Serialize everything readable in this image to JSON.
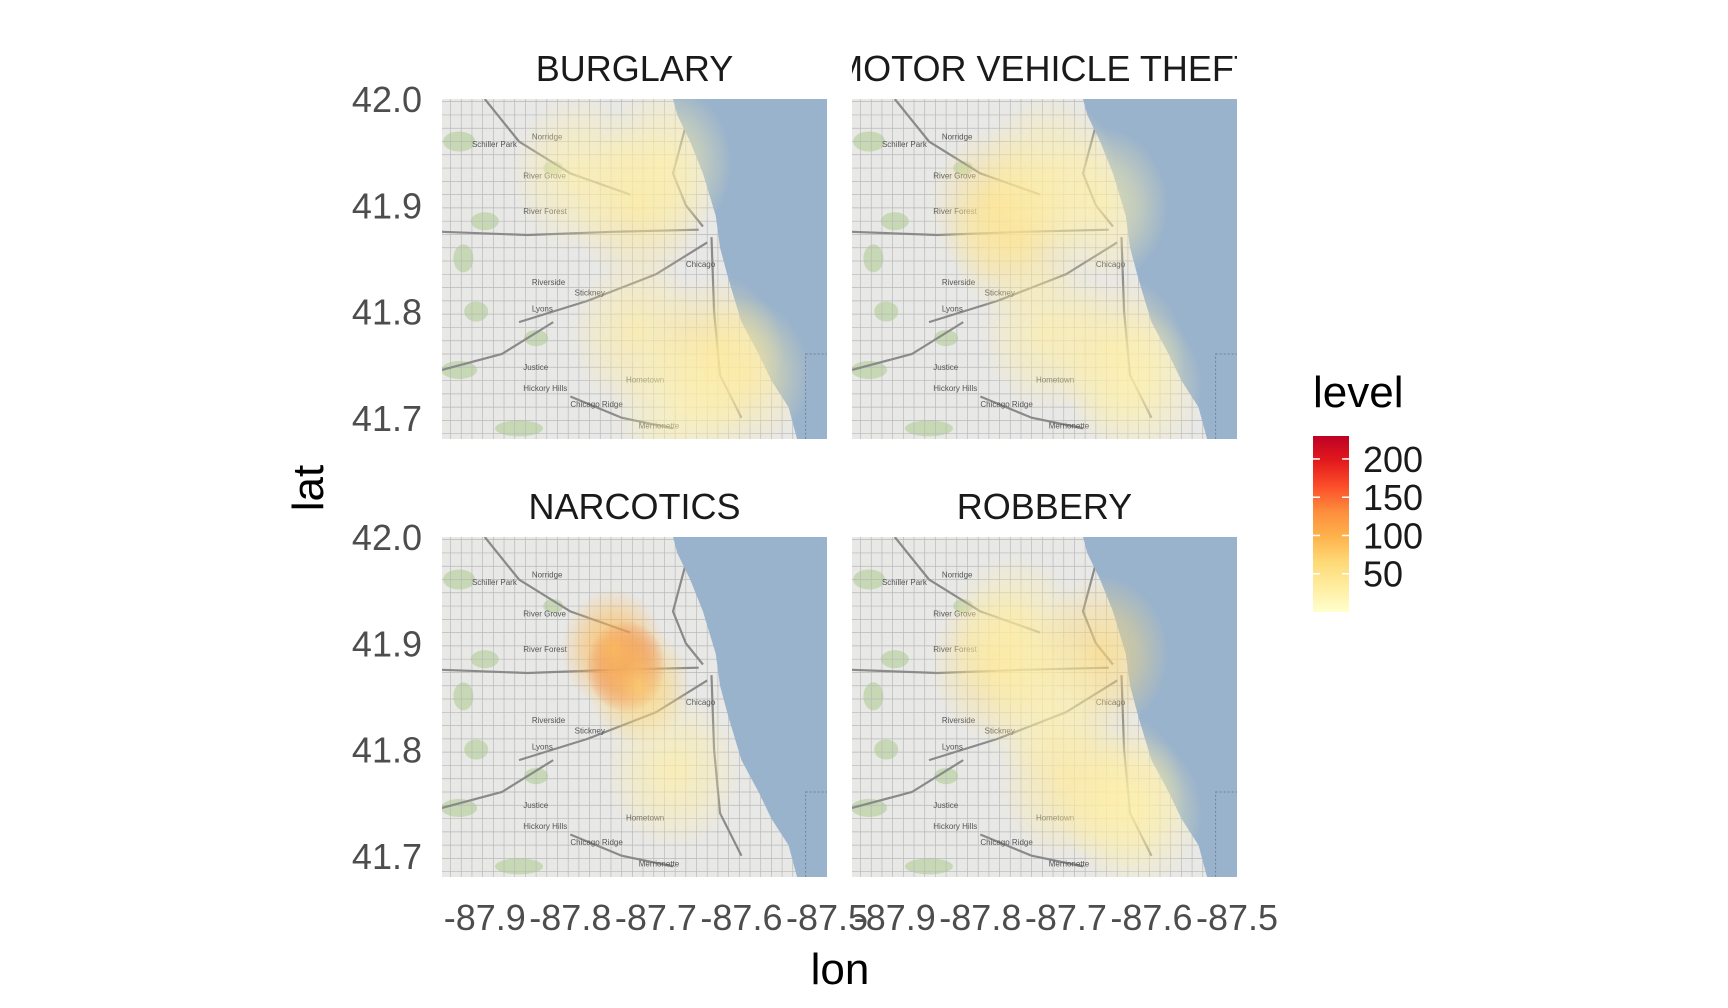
{
  "chart_data": {
    "type": "heatmap",
    "title": "",
    "xlabel": "lon",
    "ylabel": "lat",
    "facet_layout": "2x2",
    "xlim": [
      -87.95,
      -87.5
    ],
    "ylim": [
      41.68,
      42.0
    ],
    "x_ticks": [
      -87.9,
      -87.8,
      -87.7,
      -87.6,
      -87.5
    ],
    "x_tick_labels": [
      "-87.9",
      "-87.8",
      "-87.7",
      "-87.6",
      "-87.5"
    ],
    "y_ticks": [
      41.7,
      41.8,
      41.9,
      42.0
    ],
    "y_tick_labels": [
      "41.7",
      "41.8",
      "41.9",
      "42.0"
    ],
    "basemap": "Chicago street map",
    "map_colors": {
      "land": "#e8e8e6",
      "water": "#9ab3cc",
      "green": "#c6d8b4",
      "roads": "#8a8a8a"
    },
    "legend": {
      "title": "level",
      "position": "right",
      "min": 0,
      "max": 230,
      "ticks": [
        200,
        150,
        100,
        50
      ],
      "tick_labels": [
        "200",
        "150",
        "100",
        "50"
      ],
      "colors": [
        "#ffffcc",
        "#ffeda0",
        "#fed976",
        "#feb24c",
        "#fd8d3c",
        "#fc4e2a",
        "#e31a1c",
        "#bd0026"
      ]
    },
    "place_labels": [
      "Schiller Park",
      "Norridge",
      "River Grove",
      "River Forest",
      "Riverside",
      "Lyons",
      "Stickney",
      "Chicago",
      "Justice",
      "Hickory Hills",
      "Hometown",
      "Chicago Ridge",
      "Merrionette"
    ],
    "panels": [
      {
        "label": "BURGLARY",
        "hotspots": [
          {
            "lon": -87.72,
            "lat": 41.9,
            "level": 40
          },
          {
            "lon": -87.79,
            "lat": 41.93,
            "level": 28
          },
          {
            "lon": -87.69,
            "lat": 41.94,
            "level": 26
          },
          {
            "lon": -87.72,
            "lat": 41.78,
            "level": 32
          },
          {
            "lon": -87.63,
            "lat": 41.76,
            "level": 45
          },
          {
            "lon": -87.6,
            "lat": 41.74,
            "level": 32
          },
          {
            "lon": -87.67,
            "lat": 41.71,
            "level": 24
          }
        ]
      },
      {
        "label": "MOTOR VEHICLE THEFT",
        "hotspots": [
          {
            "lon": -87.78,
            "lat": 41.9,
            "level": 50
          },
          {
            "lon": -87.76,
            "lat": 41.87,
            "level": 44
          },
          {
            "lon": -87.72,
            "lat": 41.93,
            "level": 30
          },
          {
            "lon": -87.66,
            "lat": 41.9,
            "level": 28
          },
          {
            "lon": -87.72,
            "lat": 41.78,
            "level": 30
          },
          {
            "lon": -87.64,
            "lat": 41.76,
            "level": 32
          },
          {
            "lon": -87.62,
            "lat": 41.73,
            "level": 24
          }
        ]
      },
      {
        "label": "NARCOTICS",
        "hotspots": [
          {
            "lon": -87.735,
            "lat": 41.878,
            "level": 215
          },
          {
            "lon": -87.75,
            "lat": 41.895,
            "level": 90
          },
          {
            "lon": -87.72,
            "lat": 41.86,
            "level": 70
          },
          {
            "lon": -87.68,
            "lat": 41.78,
            "level": 30
          }
        ]
      },
      {
        "label": "ROBBERY",
        "hotspots": [
          {
            "lon": -87.78,
            "lat": 41.88,
            "level": 48
          },
          {
            "lon": -87.76,
            "lat": 41.91,
            "level": 30
          },
          {
            "lon": -87.66,
            "lat": 41.89,
            "level": 60
          },
          {
            "lon": -87.72,
            "lat": 41.84,
            "level": 26
          },
          {
            "lon": -87.7,
            "lat": 41.77,
            "level": 36
          },
          {
            "lon": -87.64,
            "lat": 41.76,
            "level": 34
          },
          {
            "lon": -87.62,
            "lat": 41.74,
            "level": 26
          }
        ]
      }
    ]
  }
}
